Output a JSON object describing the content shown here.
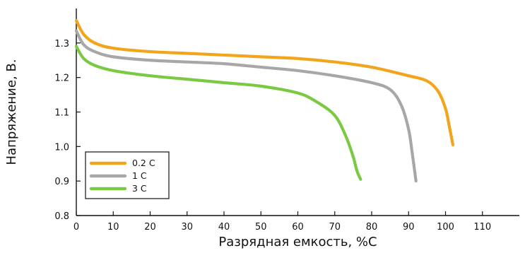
{
  "chart_data": {
    "type": "line",
    "xlabel": "Разрядная емкость, %C",
    "ylabel": "Напряжение, В.",
    "xlim": [
      0,
      120
    ],
    "ylim": [
      0.8,
      1.4
    ],
    "x_ticks": [
      0,
      10,
      20,
      30,
      40,
      50,
      60,
      70,
      80,
      90,
      100,
      110
    ],
    "y_ticks": [
      0.8,
      0.9,
      1.0,
      1.1,
      1.2,
      1.3
    ],
    "x_tick_labels": [
      "0",
      "10",
      "20",
      "30",
      "40",
      "50",
      "60",
      "70",
      "80",
      "90",
      "100",
      "110"
    ],
    "y_tick_labels": [
      "0.8",
      "0.9",
      "1.0",
      "1.1",
      "1.2",
      "1.3"
    ],
    "grid": false,
    "legend_position": "bottom-left",
    "series": [
      {
        "name": "0.2 C",
        "color": "#f2a51a",
        "x": [
          0,
          2,
          5,
          10,
          20,
          30,
          40,
          50,
          60,
          70,
          80,
          90,
          95,
          98,
          100,
          101,
          102
        ],
        "y": [
          1.365,
          1.325,
          1.3,
          1.285,
          1.275,
          1.27,
          1.265,
          1.26,
          1.255,
          1.245,
          1.23,
          1.205,
          1.19,
          1.16,
          1.11,
          1.06,
          1.005
        ]
      },
      {
        "name": "1 C",
        "color": "#a7a7a7",
        "x": [
          0,
          2,
          5,
          10,
          20,
          30,
          40,
          50,
          60,
          70,
          80,
          85,
          88,
          90,
          91,
          92
        ],
        "y": [
          1.335,
          1.295,
          1.275,
          1.26,
          1.25,
          1.245,
          1.24,
          1.23,
          1.22,
          1.205,
          1.185,
          1.165,
          1.12,
          1.05,
          0.98,
          0.9
        ]
      },
      {
        "name": "3 C",
        "color": "#7ac943",
        "x": [
          0,
          2,
          5,
          10,
          20,
          30,
          40,
          50,
          60,
          65,
          70,
          73,
          75,
          76,
          77
        ],
        "y": [
          1.29,
          1.255,
          1.235,
          1.22,
          1.205,
          1.195,
          1.185,
          1.175,
          1.155,
          1.13,
          1.09,
          1.03,
          0.97,
          0.93,
          0.905
        ]
      }
    ]
  }
}
